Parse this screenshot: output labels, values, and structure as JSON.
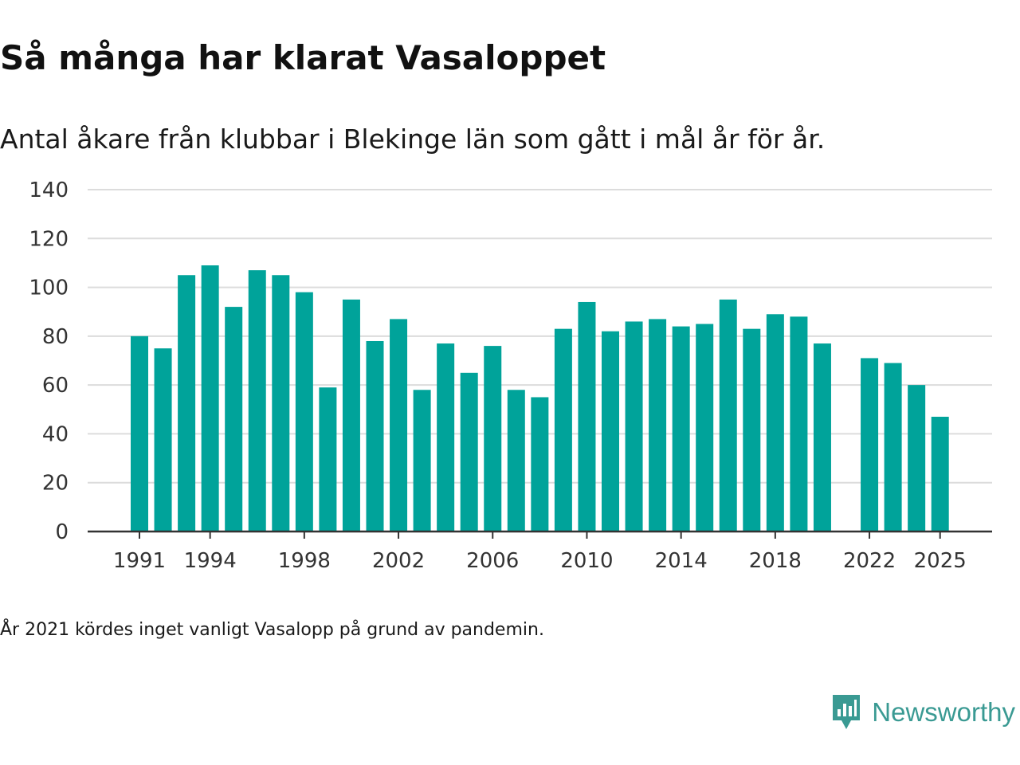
{
  "title": "Så många har klarat Vasaloppet",
  "subtitle": "Antal åkare från klubbar i Blekinge län som gått i mål år för år.",
  "note": "År 2021 kördes inget vanligt Vasalopp på grund av pandemin.",
  "brand": {
    "name": "Newsworthy",
    "icon": "newsworthy-logo-icon",
    "color": "#3a9a93"
  },
  "colors": {
    "bar": "#00a39a",
    "grid": "#dcdcdc",
    "axis": "#333333",
    "text": "#333333"
  },
  "chart_data": {
    "type": "bar",
    "title": "Så många har klarat Vasaloppet",
    "xlabel": "",
    "ylabel": "",
    "ylim": [
      0,
      140
    ],
    "yticks": [
      0,
      20,
      40,
      60,
      80,
      100,
      120,
      140
    ],
    "xticks": [
      1991,
      1994,
      1998,
      2002,
      2006,
      2010,
      2014,
      2018,
      2022,
      2025
    ],
    "grid": true,
    "categories": [
      1991,
      1992,
      1993,
      1994,
      1995,
      1996,
      1997,
      1998,
      1999,
      2000,
      2001,
      2002,
      2003,
      2004,
      2005,
      2006,
      2007,
      2008,
      2009,
      2010,
      2011,
      2012,
      2013,
      2014,
      2015,
      2016,
      2017,
      2018,
      2019,
      2020,
      2021,
      2022,
      2023,
      2024,
      2025
    ],
    "values": [
      80,
      75,
      105,
      109,
      92,
      107,
      105,
      98,
      59,
      95,
      78,
      87,
      58,
      77,
      65,
      76,
      58,
      55,
      83,
      94,
      82,
      86,
      87,
      84,
      85,
      95,
      83,
      89,
      88,
      77,
      null,
      71,
      69,
      60,
      47
    ]
  }
}
